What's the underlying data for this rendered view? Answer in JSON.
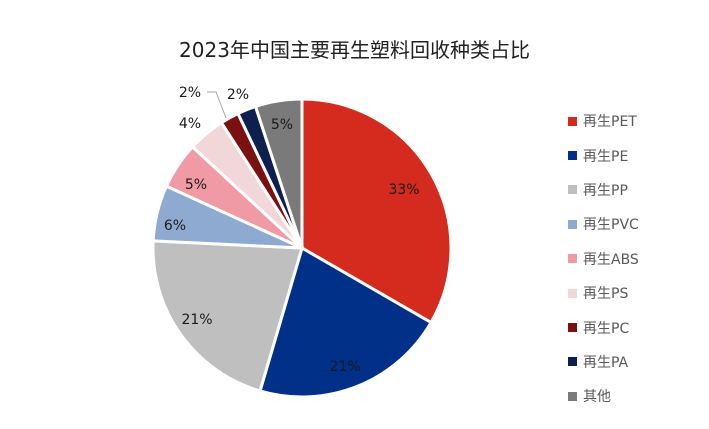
{
  "chart_data": {
    "type": "pie",
    "title": "2023年中国主要再生塑料回收种类占比",
    "categories": [
      "再生PET",
      "再生PE",
      "再生PP",
      "再生PVC",
      "再生ABS",
      "再生PS",
      "再生PC",
      "再生PA",
      "其他"
    ],
    "values": [
      33,
      21,
      21,
      6,
      5,
      4,
      2,
      2,
      5
    ],
    "labels": [
      "33%",
      "21%",
      "21%",
      "6%",
      "5%",
      "4%",
      "2%",
      "2%",
      "5%"
    ],
    "colors": [
      "#d52b1e",
      "#003087",
      "#bfbfbf",
      "#8eaad0",
      "#f09aa6",
      "#f2d7d9",
      "#7a1010",
      "#0d1f4f",
      "#7a7a7a"
    ],
    "legend_position": "right"
  }
}
